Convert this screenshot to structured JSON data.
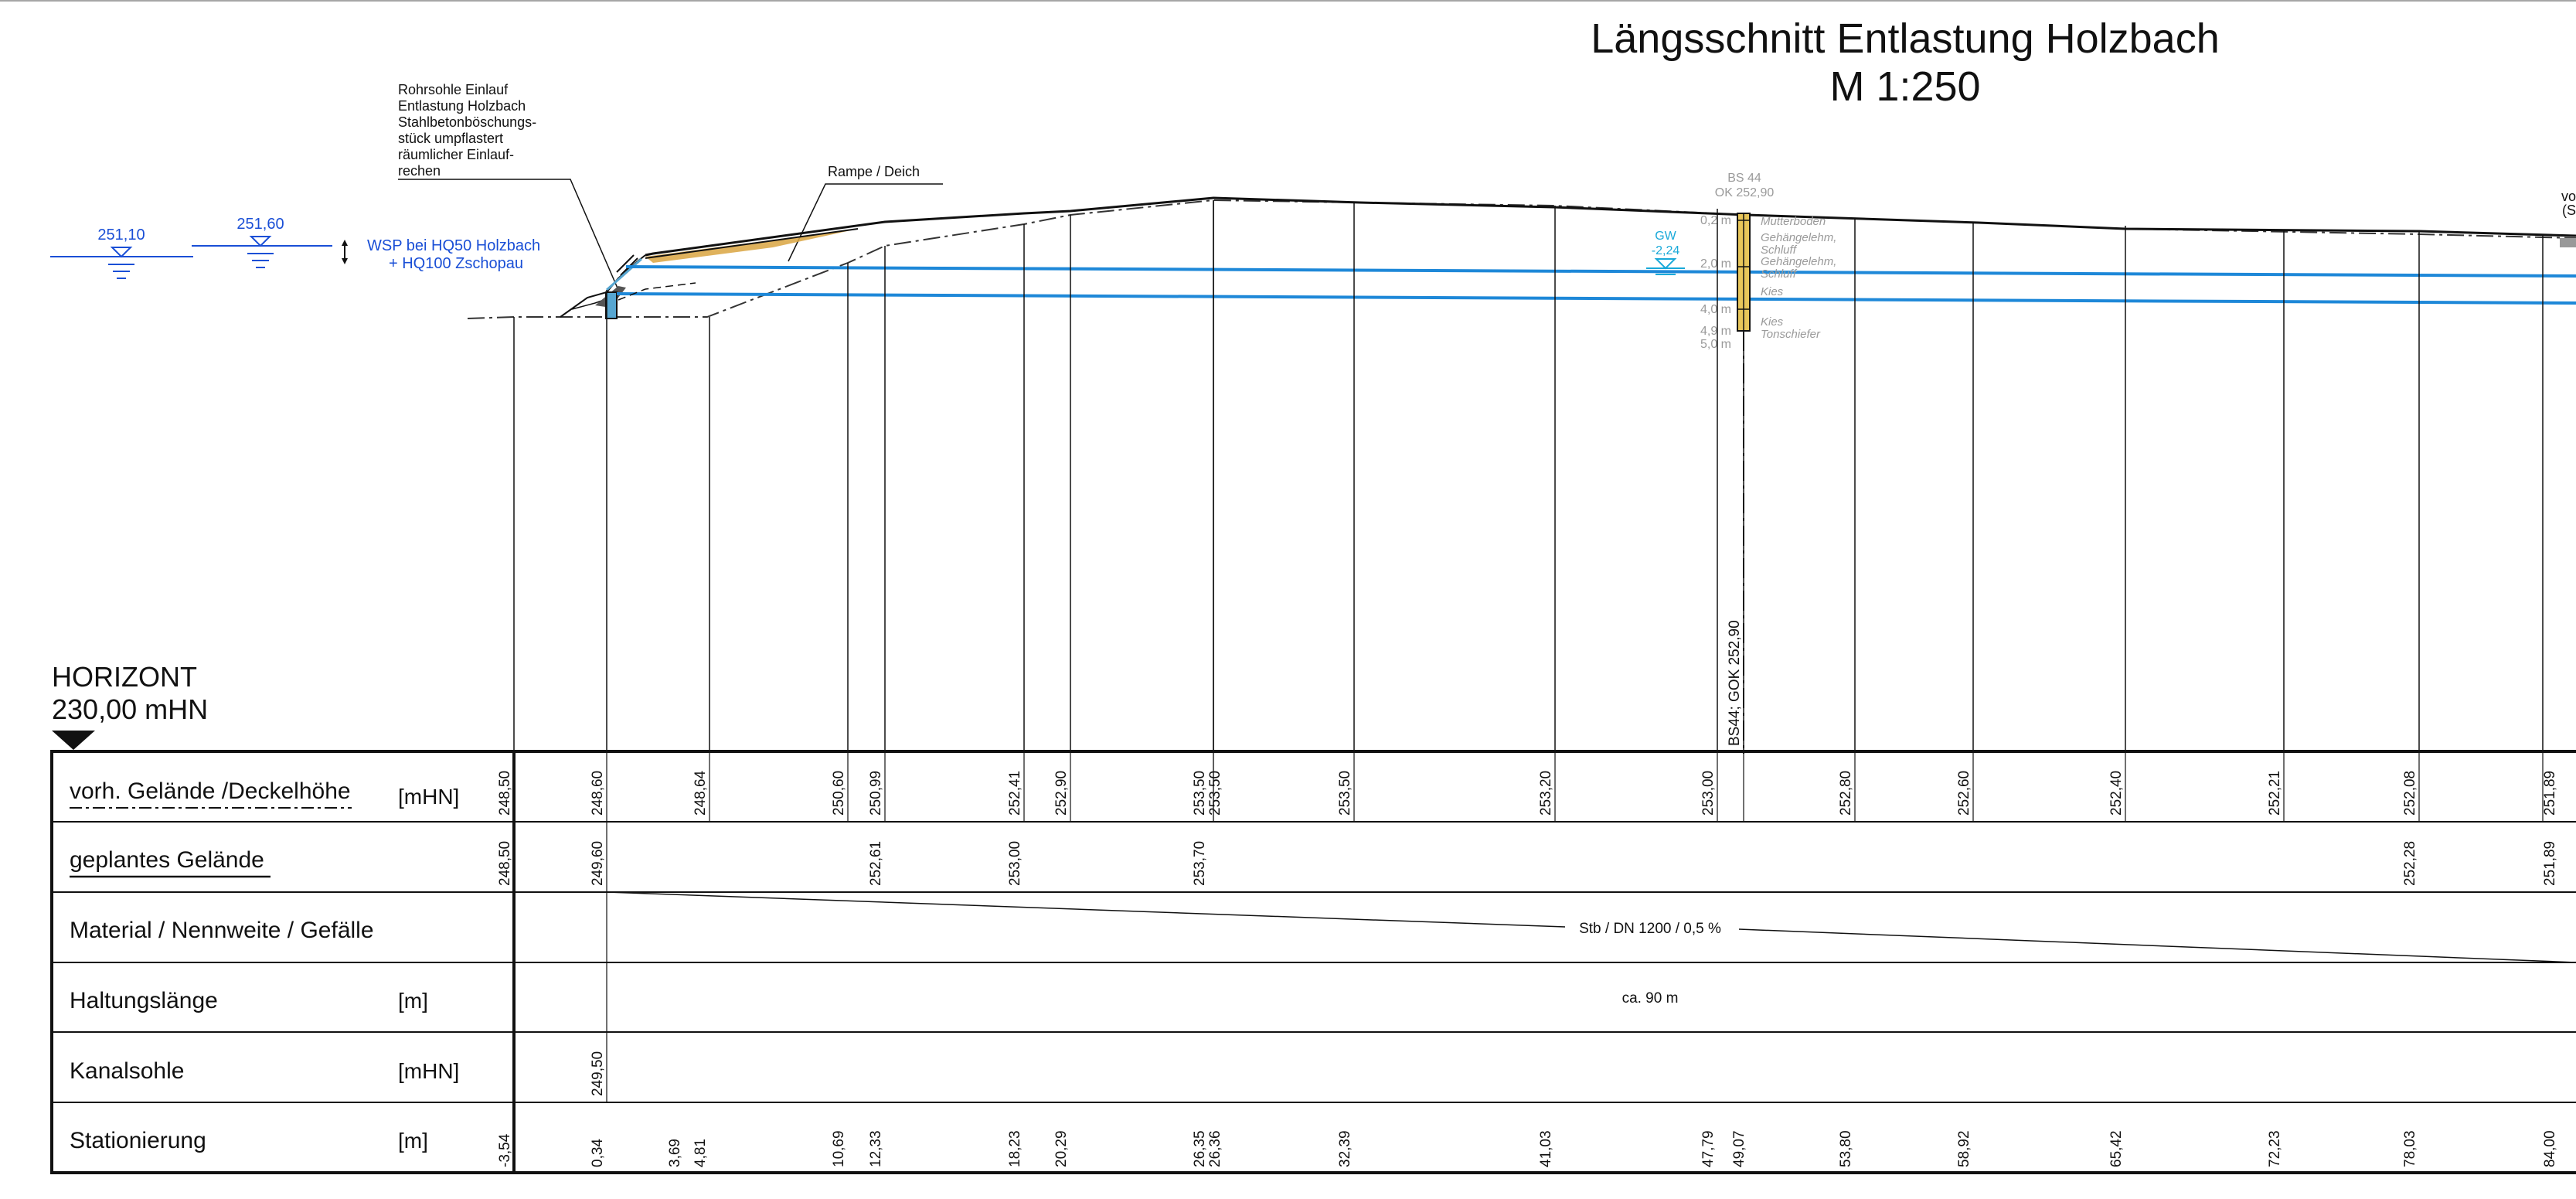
{
  "drawing": {
    "title_line1": "Längsschnitt  Entlastung Holzbach",
    "title_line2": "M 1:250"
  },
  "annotations": {
    "inlet_note": [
      "Rohrsohle Einlauf",
      "Entlastung Holzbach",
      "Stahlbetonböschungs-",
      "stück umpflastert",
      "räumlicher Einlauf-",
      "rechen"
    ],
    "ramp_label": "Rampe / Deich",
    "wsp_label_line1": "WSP bei HQ50 Holzbach",
    "wsp_label_line2": "+ HQ100 Zschopau",
    "wsp_level_1": "251,10",
    "wsp_level_2": "251,60",
    "right_edge_text_1": "vo",
    "right_edge_text_2": "(S"
  },
  "borehole": {
    "name": "BS 44",
    "ok": "OK 252,90",
    "gw_label": "GW",
    "gw_depth": "-2,24",
    "depth_labels": [
      "0,2 m",
      "2,0 m",
      "4,0 m",
      "4,9 m",
      "5,0 m"
    ],
    "layers": [
      "Mutterboden",
      "Gehängelehm,",
      "Schluff",
      "Gehängelehm,",
      "Schluff",
      "Kies",
      "Kies",
      "Tonschiefer"
    ],
    "vertical_label": "BS44; GOK 252,90"
  },
  "horizont": {
    "line1": "HORIZONT",
    "line2": "230,00 mHN"
  },
  "table": {
    "rows": [
      {
        "label": "vorh. Gelände  /Deckelhöhe",
        "unit": "[mHN]"
      },
      {
        "label": "geplantes Gelände",
        "unit": ""
      },
      {
        "label": "Material / Nennweite / Gefälle",
        "unit": ""
      },
      {
        "label": "Haltungslänge",
        "unit": "[m]"
      },
      {
        "label": "Kanalsohle",
        "unit": "[mHN]"
      },
      {
        "label": "Stationierung",
        "unit": "[m]"
      }
    ],
    "vorh_gelaende": [
      "248,50",
      "248,60",
      "248,64",
      "250,60",
      "250,99",
      "252,41",
      "252,90",
      "253,50",
      "253,50",
      "253,50",
      "253,20",
      "253,00",
      "252,80",
      "252,60",
      "252,40",
      "252,21",
      "252,08",
      "251,89"
    ],
    "geplantes_gelaende": [
      "248,50",
      "249,60",
      "252,61",
      "253,00",
      "253,70",
      "252,28",
      "251,89"
    ],
    "material": "Stb / DN 1200 / 0,5 %",
    "haltungslaenge": "ca. 90 m",
    "kanalsohle": [
      "249,50"
    ],
    "stationierung": [
      "-3,54",
      "0,34",
      "3,69",
      "4,81",
      "10,69",
      "12,33",
      "18,23",
      "20,29",
      "26,35",
      "26,36",
      "32,39",
      "41,03",
      "47,79",
      "49,07",
      "53,80",
      "58,92",
      "65,42",
      "72,23",
      "78,03",
      "84,00"
    ]
  },
  "colors": {
    "water_line": "#1e88d8",
    "wsp_text": "#1a4fd6",
    "gw_text": "#19a9d9",
    "borehole_fill": "#e8c65a",
    "ramp_fill": "#d9a441",
    "ink": "#111111",
    "light_ink": "#9a9a9a"
  }
}
